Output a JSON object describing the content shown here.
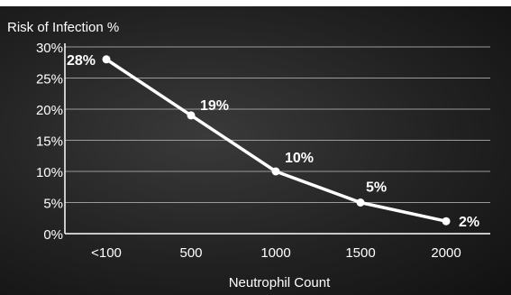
{
  "chart_data": {
    "type": "line",
    "title": "Risk of Infection %",
    "xlabel": "Neutrophil Count",
    "ylabel": "",
    "categories": [
      "<100",
      "500",
      "1000",
      "1500",
      "2000"
    ],
    "series": [
      {
        "values": [
          28,
          19,
          10,
          5,
          2
        ],
        "data_labels": [
          "28%",
          "19%",
          "10%",
          "5%",
          "2%"
        ]
      }
    ],
    "ylim": [
      0,
      30
    ],
    "yticks": [
      0,
      5,
      10,
      15,
      20,
      25,
      30
    ],
    "ytick_labels": [
      "0%",
      "5%",
      "10%",
      "15%",
      "20%",
      "25%",
      "30%"
    ],
    "grid": true,
    "colors": {
      "background": "#2a2a2a",
      "line": "#ffffff",
      "grid": "#9a9a9a",
      "text": "#ffffff"
    }
  }
}
